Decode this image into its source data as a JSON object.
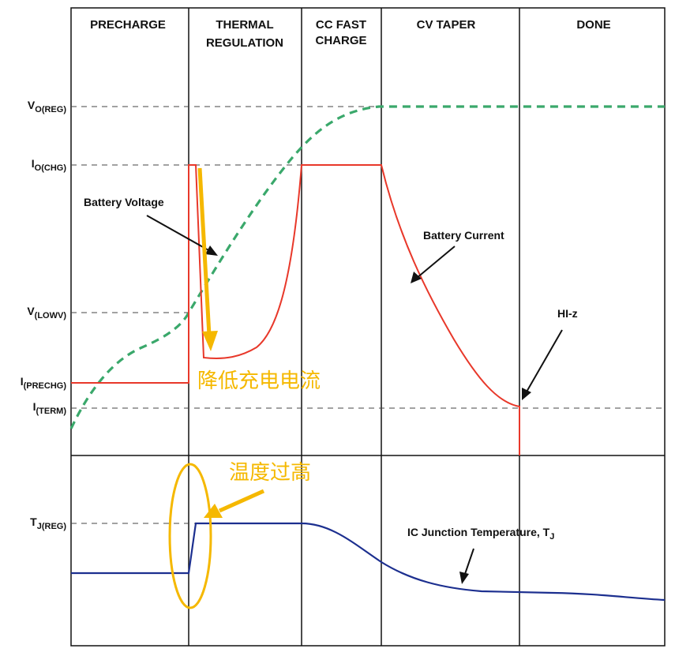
{
  "phases": [
    "PRECHARGE",
    "THERMAL",
    "REGULATION",
    "CC FAST",
    "CHARGE",
    "CV TAPER",
    "DONE"
  ],
  "levels": {
    "v_reg_main": "V",
    "v_reg_sub": "O(REG)",
    "i_chg_main": "I",
    "i_chg_sub": "O(CHG)",
    "v_lowv_main": "V",
    "v_lowv_sub": "(LOWV)",
    "i_prechg_main": "I",
    "i_prechg_sub": "(PRECHG)",
    "i_term_main": "I",
    "i_term_sub": "(TERM)",
    "tj_reg_main": "T",
    "tj_reg_sub": "J(REG)"
  },
  "annotations": {
    "battery_voltage": "Battery Voltage",
    "battery_current": "Battery Current",
    "hiz": "HI-z",
    "ic_temp_main": "IC Junction Temperature, T",
    "ic_temp_sub": "J",
    "reduce_current_cn": "降低充电电流",
    "overtemp_cn": "温度过高"
  },
  "colors": {
    "battery_voltage": "#3aa86b",
    "battery_current": "#e8382a",
    "junction_temp": "#1c2f8f",
    "highlight": "#f5b800"
  }
}
